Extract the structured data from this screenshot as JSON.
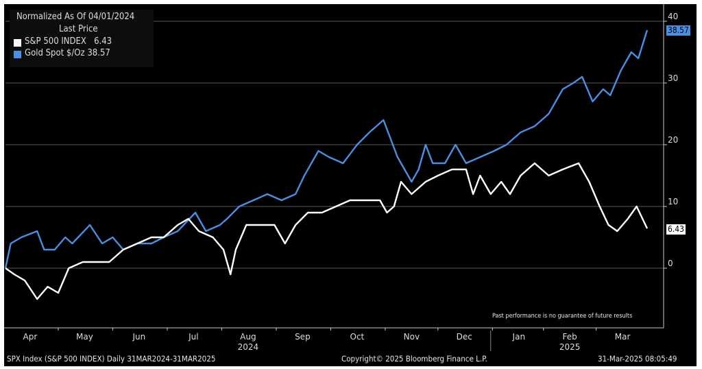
{
  "chart_data": {
    "type": "line",
    "legend": {
      "title": "Normalized As Of 04/01/2024",
      "subtitle": "Last Price",
      "placement": "top-left"
    },
    "x_unit": "days since 2024-04-01",
    "xlim": [
      0,
      365
    ],
    "ylim": [
      -9.5,
      42
    ],
    "y_ticks": [
      0,
      10,
      20,
      30,
      40
    ],
    "grid": true,
    "x_ticks": [
      {
        "label": "Apr",
        "day": 14
      },
      {
        "label": "May",
        "day": 45
      },
      {
        "label": "Jun",
        "day": 76
      },
      {
        "label": "Jul",
        "day": 107
      },
      {
        "label": "Aug",
        "day": 138
      },
      {
        "label": "Sep",
        "day": 169
      },
      {
        "label": "Oct",
        "day": 200
      },
      {
        "label": "Nov",
        "day": 231
      },
      {
        "label": "Dec",
        "day": 261
      },
      {
        "label": "Jan",
        "day": 292
      },
      {
        "label": "Feb",
        "day": 321
      },
      {
        "label": "Mar",
        "day": 351
      }
    ],
    "years": [
      {
        "label": "2024",
        "day": 138
      },
      {
        "label": "2025",
        "day": 321
      }
    ],
    "year_divider_day": 276,
    "series": [
      {
        "name": "S&P 500 INDEX",
        "last": "6.43",
        "color": "#ffffff",
        "x": [
          0,
          5,
          11,
          18,
          24,
          30,
          36,
          44,
          51,
          59,
          67,
          75,
          83,
          90,
          98,
          104,
          110,
          118,
          124,
          128,
          131,
          137,
          145,
          153,
          159,
          165,
          172,
          180,
          188,
          196,
          204,
          213,
          217,
          221,
          225,
          231,
          239,
          246,
          254,
          262,
          266,
          270,
          276,
          282,
          287,
          293,
          301,
          309,
          317,
          326,
          332,
          338,
          343,
          348,
          354,
          359,
          365
        ],
        "y": [
          0,
          -1,
          -2,
          -5,
          -3,
          -4,
          0,
          1,
          1,
          1,
          3,
          4,
          5,
          5,
          7,
          8,
          6,
          5,
          3,
          -1,
          3,
          7,
          7,
          7,
          4,
          7,
          9,
          9,
          10,
          11,
          11,
          11,
          9,
          10,
          14,
          12,
          14,
          15,
          16,
          16,
          12,
          15,
          12,
          14,
          12,
          15,
          17,
          15,
          16,
          17,
          14,
          10,
          7,
          6,
          8,
          10,
          6.43
        ]
      },
      {
        "name": "Gold Spot $/Oz",
        "last": "38.57",
        "color": "#4a90e2",
        "x": [
          0,
          3,
          9,
          18,
          22,
          28,
          34,
          38,
          48,
          55,
          61,
          67,
          75,
          83,
          90,
          98,
          108,
          114,
          122,
          126,
          133,
          141,
          149,
          157,
          165,
          170,
          178,
          184,
          192,
          200,
          207,
          215,
          219,
          223,
          227,
          231,
          235,
          239,
          243,
          250,
          256,
          262,
          270,
          278,
          285,
          293,
          301,
          309,
          317,
          323,
          328,
          334,
          340,
          344,
          350,
          356,
          360,
          365
        ],
        "y": [
          0,
          4,
          5,
          6,
          3,
          3,
          5,
          4,
          7,
          4,
          5,
          3,
          4,
          4,
          5,
          6,
          9,
          6,
          7,
          8,
          10,
          11,
          12,
          11,
          12,
          15,
          19,
          18,
          17,
          20,
          22,
          24,
          21,
          18,
          16,
          14,
          16,
          20,
          17,
          17,
          20,
          17,
          18,
          19,
          20,
          22,
          23,
          25,
          29,
          30,
          31,
          27,
          29,
          28,
          32,
          35,
          34,
          38.57
        ]
      }
    ],
    "note": "Past performance is no guarantee of future results"
  },
  "footer": {
    "left": "SPX Index (S&P 500 INDEX)  Daily 31MAR2024-31MAR2025",
    "center": "Copyright© 2025 Bloomberg Finance L.P.",
    "right": "31-Mar-2025 08:05:49"
  }
}
